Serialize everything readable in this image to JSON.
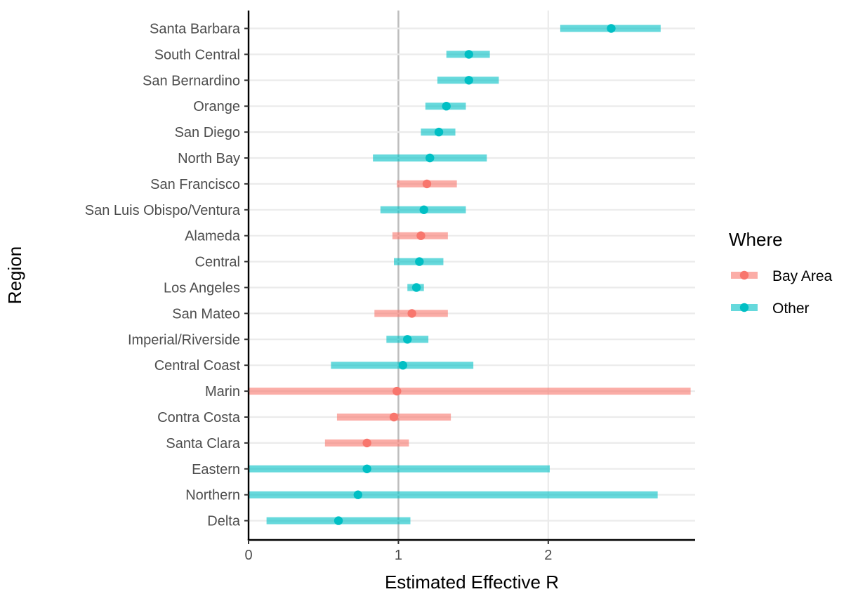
{
  "chart_data": {
    "type": "interval",
    "title": "",
    "xlabel": "Estimated Effective R",
    "ylabel": "Region",
    "xlim": [
      0,
      2.98
    ],
    "x_ticks": [
      "0",
      "1",
      "2"
    ],
    "reference_line": 1,
    "grid": true,
    "legend": {
      "title": "Where",
      "position": "right",
      "entries": [
        "Bay Area",
        "Other"
      ]
    },
    "colors": {
      "Bay Area": "#F8766D",
      "Other": "#00BFC4"
    },
    "rows": [
      {
        "region": "Santa Barbara",
        "where": "Other",
        "estimate": 2.42,
        "low": 2.08,
        "high": 2.75
      },
      {
        "region": "South Central",
        "where": "Other",
        "estimate": 1.47,
        "low": 1.32,
        "high": 1.61
      },
      {
        "region": "San Bernardino",
        "where": "Other",
        "estimate": 1.47,
        "low": 1.26,
        "high": 1.67
      },
      {
        "region": "Orange",
        "where": "Other",
        "estimate": 1.32,
        "low": 1.18,
        "high": 1.45
      },
      {
        "region": "San Diego",
        "where": "Other",
        "estimate": 1.27,
        "low": 1.15,
        "high": 1.38
      },
      {
        "region": "North Bay",
        "where": "Other",
        "estimate": 1.21,
        "low": 0.83,
        "high": 1.59
      },
      {
        "region": "San Francisco",
        "where": "Bay Area",
        "estimate": 1.19,
        "low": 0.99,
        "high": 1.39
      },
      {
        "region": "San Luis Obispo/Ventura",
        "where": "Other",
        "estimate": 1.17,
        "low": 0.88,
        "high": 1.45
      },
      {
        "region": "Alameda",
        "where": "Bay Area",
        "estimate": 1.15,
        "low": 0.96,
        "high": 1.33
      },
      {
        "region": "Central",
        "where": "Other",
        "estimate": 1.14,
        "low": 0.97,
        "high": 1.3
      },
      {
        "region": "Los Angeles",
        "where": "Other",
        "estimate": 1.12,
        "low": 1.06,
        "high": 1.17
      },
      {
        "region": "San Mateo",
        "where": "Bay Area",
        "estimate": 1.09,
        "low": 0.84,
        "high": 1.33
      },
      {
        "region": "Imperial/Riverside",
        "where": "Other",
        "estimate": 1.06,
        "low": 0.92,
        "high": 1.2
      },
      {
        "region": "Central Coast",
        "where": "Other",
        "estimate": 1.03,
        "low": 0.55,
        "high": 1.5
      },
      {
        "region": "Marin",
        "where": "Bay Area",
        "estimate": 0.99,
        "low": 0.0,
        "high": 2.95
      },
      {
        "region": "Contra Costa",
        "where": "Bay Area",
        "estimate": 0.97,
        "low": 0.59,
        "high": 1.35
      },
      {
        "region": "Santa Clara",
        "where": "Bay Area",
        "estimate": 0.79,
        "low": 0.51,
        "high": 1.07
      },
      {
        "region": "Eastern",
        "where": "Other",
        "estimate": 0.79,
        "low": 0.0,
        "high": 2.01
      },
      {
        "region": "Northern",
        "where": "Other",
        "estimate": 0.73,
        "low": 0.0,
        "high": 2.73
      },
      {
        "region": "Delta",
        "where": "Other",
        "estimate": 0.6,
        "low": 0.12,
        "high": 1.08
      }
    ]
  }
}
